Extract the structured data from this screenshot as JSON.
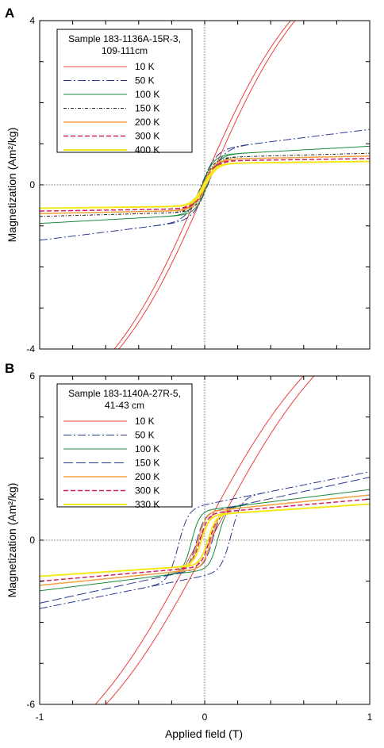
{
  "chart_data": [
    {
      "type": "line",
      "panel_label": "A",
      "ylabel": "Magnetization (Am²/kg)",
      "xlim": [
        -1,
        1
      ],
      "ylim": [
        -4,
        4
      ],
      "y_tick_labels": [
        {
          "value": 4,
          "label": "4"
        },
        {
          "value": 0,
          "label": "0"
        },
        {
          "value": -4,
          "label": "-4"
        }
      ],
      "legend_title": [
        "Sample 183-1136A-15R-3,",
        "109-111cm"
      ],
      "series": [
        {
          "name": "10 K",
          "color": "#e8413c",
          "dash": "",
          "width": 1.0,
          "Ms": 4.2,
          "chi": 1.6,
          "Hk": 0.55,
          "Hc": 0.02
        },
        {
          "name": "50 K",
          "color": "#2a3a8f",
          "dash": "10,3,2,3",
          "width": 1.0,
          "Ms": 0.85,
          "chi": 0.5,
          "Hk": 0.09,
          "Hc": 0.02
        },
        {
          "name": "100 K",
          "color": "#1a8a3a",
          "dash": "",
          "width": 1.0,
          "Ms": 0.72,
          "chi": 0.22,
          "Hk": 0.07,
          "Hc": 0.015
        },
        {
          "name": "150 K",
          "color": "#222222",
          "dash": "4,2,1,2",
          "width": 1.0,
          "Ms": 0.66,
          "chi": 0.11,
          "Hk": 0.07,
          "Hc": 0.012
        },
        {
          "name": "200 K",
          "color": "#f0a040",
          "dash": "",
          "width": 1.5,
          "Ms": 0.62,
          "chi": 0.08,
          "Hk": 0.07,
          "Hc": 0.01
        },
        {
          "name": "300 K",
          "color": "#d0206a",
          "dash": "6,3",
          "width": 1.5,
          "Ms": 0.58,
          "chi": 0.06,
          "Hk": 0.07,
          "Hc": 0.008
        },
        {
          "name": "400 K",
          "color": "#f5e81a",
          "dash": "",
          "width": 2.0,
          "Ms": 0.52,
          "chi": 0.05,
          "Hk": 0.07,
          "Hc": 0.006
        }
      ]
    },
    {
      "type": "line",
      "panel_label": "B",
      "ylabel": "Magnetization (Am²/kg)",
      "xlabel": "Applied field (T)",
      "xlim": [
        -1,
        1
      ],
      "ylim": [
        -6,
        6
      ],
      "x_tick_labels": [
        {
          "value": -1,
          "label": "-1"
        },
        {
          "value": 0,
          "label": "0"
        },
        {
          "value": 1,
          "label": "1"
        }
      ],
      "y_tick_labels": [
        {
          "value": 6,
          "label": "6"
        },
        {
          "value": 0,
          "label": "0"
        },
        {
          "value": -6,
          "label": "-6"
        }
      ],
      "legend_title": [
        "Sample 183-1140A-27R-5,",
        "41-43 cm"
      ],
      "series": [
        {
          "name": "10 K",
          "color": "#e8413c",
          "dash": "",
          "width": 1.0,
          "Ms": 7.5,
          "chi": 1.35,
          "Hk": 0.75,
          "Hc": 0.04
        },
        {
          "name": "50 K",
          "color": "#2a3a8f",
          "dash": "10,3,2,3",
          "width": 1.0,
          "Ms": 1.3,
          "chi": 1.2,
          "Hk": 0.06,
          "Hc": 0.16
        },
        {
          "name": "100 K",
          "color": "#1a8a3a",
          "dash": "",
          "width": 1.0,
          "Ms": 1.1,
          "chi": 0.75,
          "Hk": 0.05,
          "Hc": 0.08
        },
        {
          "name": "150 K",
          "color": "#2a3a8f",
          "dash": "12,4",
          "width": 1.0,
          "Ms": 1.0,
          "chi": 1.3,
          "Hk": 0.05,
          "Hc": 0.05
        },
        {
          "name": "200 K",
          "color": "#f0a040",
          "dash": "",
          "width": 1.5,
          "Ms": 1.05,
          "chi": 0.6,
          "Hk": 0.05,
          "Hc": 0.04
        },
        {
          "name": "300 K",
          "color": "#d0206a",
          "dash": "6,3",
          "width": 1.5,
          "Ms": 0.98,
          "chi": 0.52,
          "Hk": 0.05,
          "Hc": 0.03
        },
        {
          "name": "330 K",
          "color": "#f5e81a",
          "dash": "",
          "width": 2.0,
          "Ms": 0.92,
          "chi": 0.4,
          "Hk": 0.05,
          "Hc": 0.02
        }
      ]
    }
  ]
}
